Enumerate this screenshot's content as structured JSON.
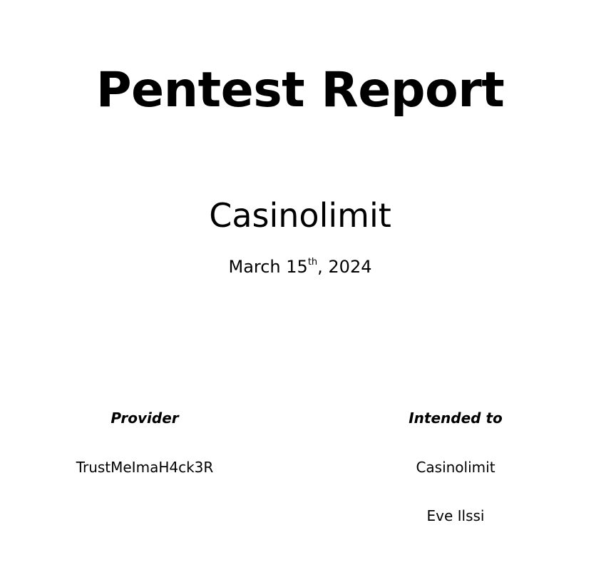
{
  "title": "Pentest Report",
  "client": "Casinolimit",
  "date": {
    "prefix": "March 15",
    "suffix": "th",
    "rest": ", 2024"
  },
  "provider": {
    "heading": "Provider",
    "name": "TrustMeImaH4ck3R"
  },
  "recipient": {
    "heading": "Intended to",
    "organization": "Casinolimit",
    "person": "Eve Ilssi"
  }
}
